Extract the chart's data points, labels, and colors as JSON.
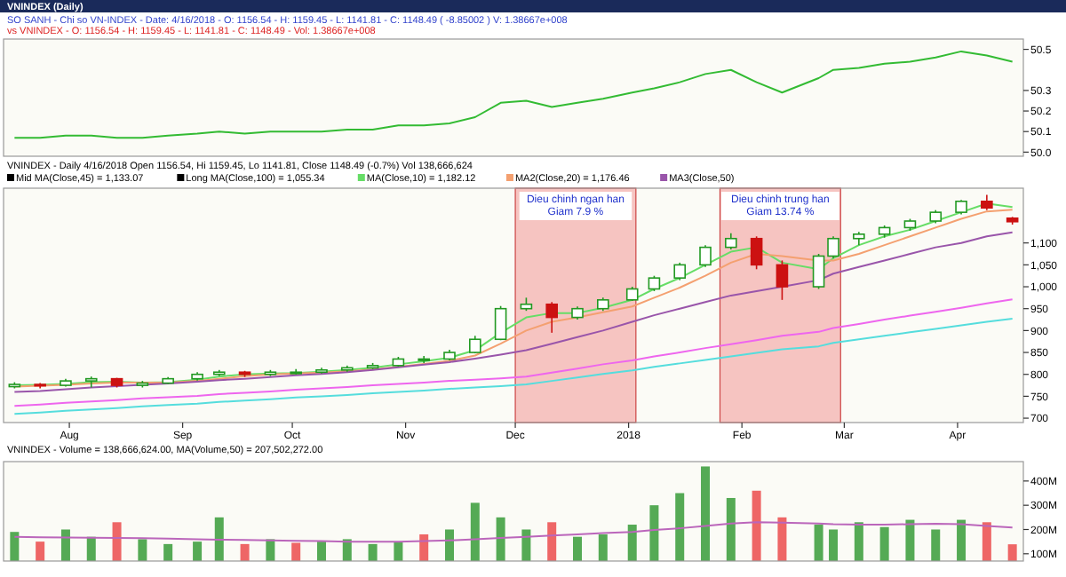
{
  "chart_data": [
    {
      "type": "line",
      "title": "VNINDEX (Daily)",
      "subtitle": "SO SANH - Chi so VN-INDEX - Date: 4/16/2018 - O: 1156.54 - H: 1159.45 - L: 1141.81 - C: 1148.49 ( -8.85002 ) V: 1.38667e+008",
      "annotations": [
        "vs VNINDEX - O: 1156.54 - H: 1159.45 - L: 1141.81 - C: 1148.49 - Vol: 1.38667e+008"
      ],
      "x": [
        "2017-07-17",
        "2017-07-24",
        "2017-07-31",
        "2017-08-07",
        "2017-08-14",
        "2017-08-21",
        "2017-08-28",
        "2017-09-05",
        "2017-09-11",
        "2017-09-18",
        "2017-09-25",
        "2017-10-02",
        "2017-10-09",
        "2017-10-16",
        "2017-10-23",
        "2017-10-30",
        "2017-11-06",
        "2017-11-13",
        "2017-11-20",
        "2017-11-27",
        "2017-12-04",
        "2017-12-11",
        "2017-12-18",
        "2017-12-25",
        "2018-01-02",
        "2018-01-08",
        "2018-01-15",
        "2018-01-22",
        "2018-01-29",
        "2018-02-05",
        "2018-02-12",
        "2018-02-22",
        "2018-02-26",
        "2018-03-05",
        "2018-03-12",
        "2018-03-19",
        "2018-03-26",
        "2018-04-02",
        "2018-04-09",
        "2018-04-16"
      ],
      "series": [
        {
          "color": "#33bb33",
          "values": [
            50.07,
            50.07,
            50.08,
            50.08,
            50.07,
            50.07,
            50.08,
            50.09,
            50.1,
            50.09,
            50.1,
            50.1,
            50.1,
            50.11,
            50.11,
            50.13,
            50.13,
            50.14,
            50.17,
            50.24,
            50.25,
            50.22,
            50.24,
            50.26,
            50.29,
            50.31,
            50.34,
            50.38,
            50.4,
            50.34,
            50.29,
            50.36,
            50.4,
            50.41,
            50.43,
            50.44,
            50.46,
            50.49,
            50.47,
            50.44
          ]
        }
      ],
      "xlim": [
        "2017-07-14",
        "2018-04-19"
      ],
      "ylim": [
        49.98,
        50.55
      ],
      "yticks": [
        {
          "value": 50,
          "label": "50.0"
        },
        {
          "value": 50.1,
          "label": "50.1"
        },
        {
          "value": 50.2,
          "label": "50.2"
        },
        {
          "value": 50.3,
          "label": "50.3"
        },
        {
          "value": 50.5,
          "label": "50.5"
        }
      ],
      "tick_labels": "y"
    },
    {
      "type": "candlestick",
      "title": "VNINDEX - Daily 4/16/2018 Open 1156.54, Hi 1159.45, Lo 1141.81, Close 1148.49 (-0.7%) Vol 138,666,624",
      "legend": "top left",
      "x": [
        "2017-07-17",
        "2017-07-24",
        "2017-07-31",
        "2017-08-07",
        "2017-08-14",
        "2017-08-21",
        "2017-08-28",
        "2017-09-05",
        "2017-09-11",
        "2017-09-18",
        "2017-09-25",
        "2017-10-02",
        "2017-10-09",
        "2017-10-16",
        "2017-10-23",
        "2017-10-30",
        "2017-11-06",
        "2017-11-13",
        "2017-11-20",
        "2017-11-27",
        "2017-12-04",
        "2017-12-11",
        "2017-12-18",
        "2017-12-25",
        "2018-01-02",
        "2018-01-08",
        "2018-01-15",
        "2018-01-22",
        "2018-01-29",
        "2018-02-05",
        "2018-02-12",
        "2018-02-22",
        "2018-02-26",
        "2018-03-05",
        "2018-03-12",
        "2018-03-19",
        "2018-03-26",
        "2018-04-02",
        "2018-04-09",
        "2018-04-16"
      ],
      "ohlc": [
        [
          772,
          782,
          768,
          777
        ],
        [
          777,
          780,
          768,
          775
        ],
        [
          775,
          790,
          772,
          785
        ],
        [
          785,
          795,
          770,
          790
        ],
        [
          790,
          792,
          770,
          775
        ],
        [
          775,
          785,
          770,
          780
        ],
        [
          780,
          794,
          778,
          790
        ],
        [
          790,
          805,
          786,
          800
        ],
        [
          800,
          810,
          796,
          805
        ],
        [
          805,
          808,
          794,
          800
        ],
        [
          800,
          810,
          796,
          805
        ],
        [
          805,
          812,
          800,
          805
        ],
        [
          805,
          815,
          802,
          810
        ],
        [
          810,
          820,
          806,
          815
        ],
        [
          815,
          826,
          812,
          820
        ],
        [
          820,
          840,
          818,
          835
        ],
        [
          835,
          842,
          826,
          835
        ],
        [
          835,
          856,
          832,
          850
        ],
        [
          850,
          888,
          848,
          880
        ],
        [
          880,
          956,
          878,
          950
        ],
        [
          950,
          975,
          945,
          960
        ],
        [
          960,
          965,
          895,
          930
        ],
        [
          930,
          955,
          925,
          950
        ],
        [
          950,
          975,
          945,
          970
        ],
        [
          970,
          1000,
          968,
          995
        ],
        [
          995,
          1025,
          990,
          1020
        ],
        [
          1020,
          1055,
          1015,
          1050
        ],
        [
          1050,
          1095,
          1045,
          1090
        ],
        [
          1090,
          1122,
          1085,
          1110
        ],
        [
          1110,
          1115,
          1040,
          1050
        ],
        [
          1050,
          1060,
          970,
          1000
        ],
        [
          1000,
          1075,
          995,
          1070
        ],
        [
          1070,
          1115,
          1065,
          1110
        ],
        [
          1110,
          1125,
          1095,
          1120
        ],
        [
          1120,
          1140,
          1112,
          1135
        ],
        [
          1135,
          1155,
          1128,
          1150
        ],
        [
          1150,
          1175,
          1145,
          1170
        ],
        [
          1170,
          1198,
          1165,
          1195
        ],
        [
          1195,
          1210,
          1175,
          1180
        ],
        [
          1156.54,
          1159.45,
          1141.81,
          1148.49
        ]
      ],
      "series": [
        {
          "type": "line",
          "name": "MA(Close,10) = 1,182.12",
          "color": "#66dd66",
          "values": [
            775,
            776,
            778,
            782,
            783,
            781,
            782,
            788,
            795,
            800,
            802,
            803,
            806,
            810,
            815,
            823,
            830,
            838,
            855,
            895,
            930,
            940,
            940,
            952,
            970,
            995,
            1020,
            1050,
            1080,
            1090,
            1055,
            1040,
            1065,
            1095,
            1115,
            1130,
            1150,
            1170,
            1190,
            1182
          ]
        },
        {
          "type": "line",
          "name": "MA2(Close,20) = 1,176.46",
          "color": "#f4a070",
          "values": [
            772,
            774,
            776,
            779,
            781,
            781,
            781,
            785,
            790,
            796,
            800,
            802,
            804,
            807,
            811,
            817,
            824,
            831,
            843,
            870,
            900,
            920,
            930,
            942,
            955,
            975,
            998,
            1025,
            1055,
            1075,
            1070,
            1060,
            1060,
            1075,
            1095,
            1115,
            1135,
            1155,
            1172,
            1176
          ]
        },
        {
          "type": "line",
          "name": "MA3(Close,50)",
          "color": "#9955aa",
          "values": [
            760,
            762,
            766,
            770,
            773,
            776,
            779,
            783,
            787,
            790,
            794,
            798,
            801,
            805,
            810,
            816,
            822,
            828,
            836,
            845,
            855,
            870,
            885,
            900,
            920,
            935,
            950,
            965,
            980,
            990,
            1000,
            1015,
            1030,
            1045,
            1060,
            1075,
            1090,
            1100,
            1115,
            1124
          ]
        },
        {
          "type": "line",
          "color": "#ee66ee",
          "values": [
            728,
            731,
            735,
            738,
            741,
            745,
            748,
            751,
            755,
            758,
            761,
            765,
            768,
            771,
            775,
            778,
            781,
            785,
            788,
            791,
            795,
            804,
            813,
            823,
            832,
            841,
            850,
            860,
            869,
            878,
            888,
            897,
            906,
            915,
            925,
            934,
            943,
            952,
            962,
            971
          ]
        },
        {
          "type": "line",
          "color": "#55dddd",
          "values": [
            710,
            713,
            717,
            720,
            723,
            727,
            730,
            733,
            737,
            740,
            743,
            747,
            750,
            753,
            757,
            760,
            763,
            767,
            770,
            773,
            777,
            785,
            793,
            801,
            809,
            817,
            825,
            833,
            841,
            849,
            857,
            864,
            872,
            880,
            888,
            896,
            904,
            912,
            920,
            927
          ]
        }
      ],
      "annotations": [
        "Mid MA(Close,45) = 1,133.07",
        "Long MA(Close,100) = 1,055.34"
      ],
      "bands": [
        {
          "axis": "x",
          "from": "2017-12-01",
          "to": "2018-01-03",
          "color": "#f08080",
          "label": "Dieu chinh ngan han\nGiam 7.9 %"
        },
        {
          "axis": "x",
          "from": "2018-01-26",
          "to": "2018-02-28",
          "color": "#f08080",
          "label": "Dieu chinh trung han\nGiam 13.74 %"
        }
      ],
      "xlim": [
        "2017-07-14",
        "2018-04-19"
      ],
      "ylim": [
        690,
        1225
      ],
      "xticks": [
        {
          "value": "2017-08-01",
          "label": "Aug"
        },
        {
          "value": "2017-09-01",
          "label": "Sep"
        },
        {
          "value": "2017-10-01",
          "label": "Oct"
        },
        {
          "value": "2017-11-01",
          "label": "Nov"
        },
        {
          "value": "2017-12-01",
          "label": "Dec"
        },
        {
          "value": "2018-01-01",
          "label": "2018"
        },
        {
          "value": "2018-02-01",
          "label": "Feb"
        },
        {
          "value": "2018-03-01",
          "label": "Mar"
        },
        {
          "value": "2018-04-01",
          "label": "Apr"
        }
      ],
      "yticks": [
        700,
        750,
        800,
        850,
        900,
        950,
        {
          "value": 1000,
          "label": "1,000"
        },
        {
          "value": 1050,
          "label": "1,050"
        },
        {
          "value": 1100,
          "label": "1,100"
        }
      ]
    },
    {
      "type": "bar",
      "title": "VNINDEX - Volume = 138,666,624.00, MA(Volume,50) = 207,502,272.00",
      "x": [
        "2017-07-17",
        "2017-07-24",
        "2017-07-31",
        "2017-08-07",
        "2017-08-14",
        "2017-08-21",
        "2017-08-28",
        "2017-09-05",
        "2017-09-11",
        "2017-09-18",
        "2017-09-25",
        "2017-10-02",
        "2017-10-09",
        "2017-10-16",
        "2017-10-23",
        "2017-10-30",
        "2017-11-06",
        "2017-11-13",
        "2017-11-20",
        "2017-11-27",
        "2017-12-04",
        "2017-12-11",
        "2017-12-18",
        "2017-12-25",
        "2018-01-02",
        "2018-01-08",
        "2018-01-15",
        "2018-01-22",
        "2018-01-29",
        "2018-02-05",
        "2018-02-12",
        "2018-02-22",
        "2018-02-26",
        "2018-03-05",
        "2018-03-12",
        "2018-03-19",
        "2018-03-26",
        "2018-04-02",
        "2018-04-09",
        "2018-04-16"
      ],
      "series": [
        {
          "type": "bar",
          "colors": [
            "#55aa55",
            "#ee6666",
            "#55aa55",
            "#55aa55",
            "#ee6666",
            "#55aa55",
            "#55aa55",
            "#55aa55",
            "#55aa55",
            "#ee6666",
            "#55aa55",
            "#ee6666",
            "#55aa55",
            "#55aa55",
            "#55aa55",
            "#55aa55",
            "#ee6666",
            "#55aa55",
            "#55aa55",
            "#55aa55",
            "#55aa55",
            "#ee6666",
            "#55aa55",
            "#55aa55",
            "#55aa55",
            "#55aa55",
            "#55aa55",
            "#55aa55",
            "#55aa55",
            "#ee6666",
            "#ee6666",
            "#55aa55",
            "#55aa55",
            "#55aa55",
            "#55aa55",
            "#55aa55",
            "#55aa55",
            "#55aa55",
            "#ee6666",
            "#ee6666"
          ],
          "values": [
            190,
            150,
            200,
            170,
            230,
            160,
            140,
            150,
            250,
            140,
            160,
            145,
            150,
            160,
            140,
            150,
            180,
            200,
            310,
            250,
            200,
            230,
            170,
            180,
            220,
            300,
            350,
            460,
            330,
            360,
            250,
            220,
            200,
            230,
            210,
            240,
            200,
            240,
            230,
            139
          ]
        },
        {
          "type": "line",
          "color": "#bb66bb",
          "values": [
            170,
            168,
            167,
            166,
            165,
            164,
            162,
            160,
            158,
            157,
            155,
            153,
            152,
            150,
            150,
            150,
            152,
            155,
            160,
            165,
            170,
            175,
            180,
            185,
            190,
            198,
            205,
            215,
            225,
            230,
            228,
            225,
            222,
            220,
            220,
            222,
            224,
            222,
            215,
            208
          ]
        }
      ],
      "xlim": [
        "2017-07-14",
        "2018-04-19"
      ],
      "ylim": [
        70,
        480
      ],
      "yticks": [
        {
          "value": 100,
          "label": "100M"
        },
        {
          "value": 200,
          "label": "200M"
        },
        {
          "value": 300,
          "label": "300M"
        },
        {
          "value": 400,
          "label": "400M"
        }
      ],
      "tick_labels": "y"
    }
  ]
}
